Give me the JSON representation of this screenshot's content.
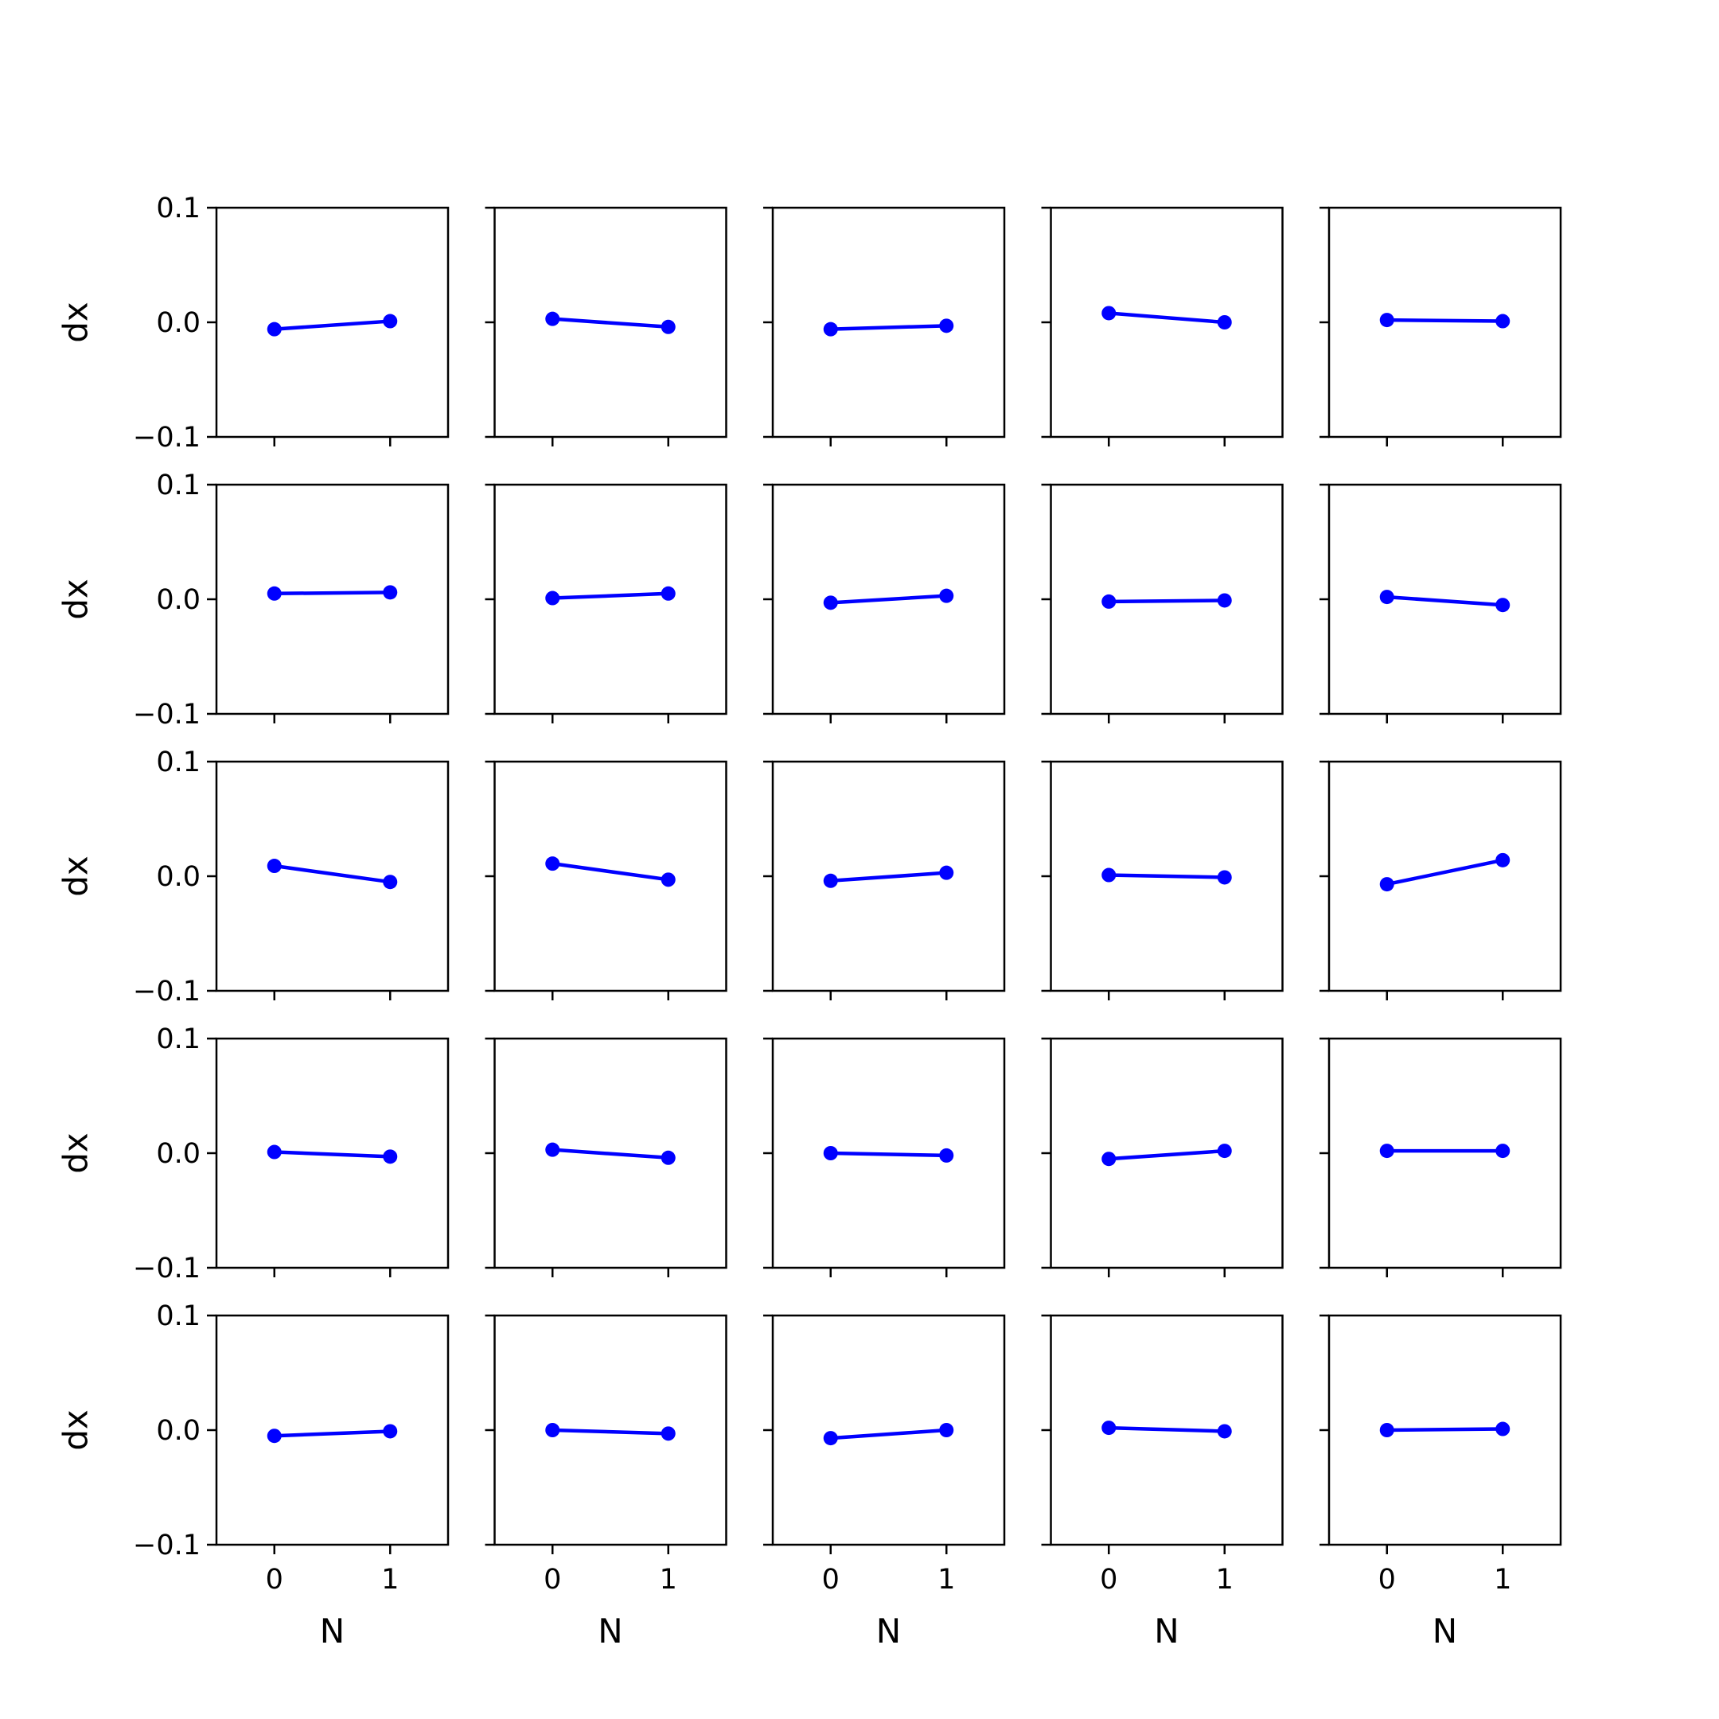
{
  "chart_data": {
    "type": "line",
    "layout": {
      "rows": 5,
      "cols": 5
    },
    "xlabel": "N",
    "ylabel": "dx",
    "x": [
      0,
      1
    ],
    "xticks": [
      0,
      1
    ],
    "xtick_labels": [
      "0",
      "1"
    ],
    "xlim": [
      -0.5,
      1.5
    ],
    "yticks": [
      -0.1,
      0.0,
      0.1
    ],
    "ytick_labels": [
      "−0.1",
      "0.0",
      "0.1"
    ],
    "ylim": [
      -0.1,
      0.1
    ],
    "line_color": "#0000ff",
    "marker": "circle",
    "grid": false,
    "panels": [
      {
        "values": [
          -0.006,
          0.001
        ]
      },
      {
        "values": [
          0.003,
          -0.004
        ]
      },
      {
        "values": [
          -0.006,
          -0.003
        ]
      },
      {
        "values": [
          0.008,
          0.0
        ]
      },
      {
        "values": [
          0.002,
          0.001
        ]
      },
      {
        "values": [
          0.005,
          0.006
        ]
      },
      {
        "values": [
          0.001,
          0.005
        ]
      },
      {
        "values": [
          -0.003,
          0.003
        ]
      },
      {
        "values": [
          -0.002,
          -0.001
        ]
      },
      {
        "values": [
          0.002,
          -0.005
        ]
      },
      {
        "values": [
          0.009,
          -0.005
        ]
      },
      {
        "values": [
          0.011,
          -0.003
        ]
      },
      {
        "values": [
          -0.004,
          0.003
        ]
      },
      {
        "values": [
          0.001,
          -0.001
        ]
      },
      {
        "values": [
          -0.007,
          0.014
        ]
      },
      {
        "values": [
          0.001,
          -0.003
        ]
      },
      {
        "values": [
          0.003,
          -0.004
        ]
      },
      {
        "values": [
          0.0,
          -0.002
        ]
      },
      {
        "values": [
          -0.005,
          0.002
        ]
      },
      {
        "values": [
          0.002,
          0.002
        ]
      },
      {
        "values": [
          -0.005,
          -0.001
        ]
      },
      {
        "values": [
          0.0,
          -0.003
        ]
      },
      {
        "values": [
          -0.007,
          0.0
        ]
      },
      {
        "values": [
          0.002,
          -0.001
        ]
      },
      {
        "values": [
          0.0,
          0.001
        ]
      }
    ]
  }
}
